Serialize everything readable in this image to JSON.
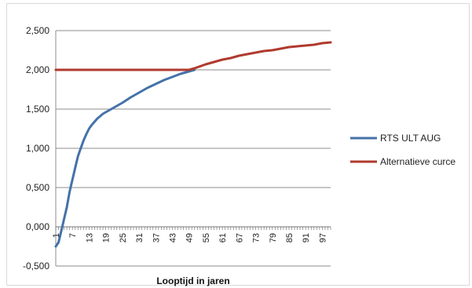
{
  "chart_data": {
    "type": "line",
    "title": "",
    "xlabel": "Looptijd in jaren",
    "ylabel": "",
    "ylim": [
      -0.5,
      2.5
    ],
    "yticks": [
      -0.5,
      0,
      0.5,
      1,
      1.5,
      2,
      2.5
    ],
    "ytick_labels": [
      "-0,500",
      "0,000",
      "0,500",
      "1,000",
      "1,500",
      "2,000",
      "2,500"
    ],
    "xlim": [
      1,
      100
    ],
    "xtick_labels": [
      "1",
      "7",
      "13",
      "19",
      "25",
      "31",
      "37",
      "43",
      "49",
      "55",
      "61",
      "67",
      "73",
      "79",
      "85",
      "91",
      "97"
    ],
    "grid": true,
    "legend_position": "right",
    "series": [
      {
        "name": "RTS ULT AUG",
        "color": "#4472a8",
        "x": [
          1,
          2,
          3,
          4,
          5,
          6,
          7,
          8,
          9,
          10,
          11,
          12,
          13,
          14,
          15,
          16,
          17,
          18,
          19,
          20,
          22,
          25,
          28,
          31,
          34,
          37,
          40,
          43,
          46,
          49,
          51
        ],
        "values": [
          -0.25,
          -0.2,
          -0.05,
          0.1,
          0.25,
          0.45,
          0.6,
          0.75,
          0.9,
          1.0,
          1.1,
          1.18,
          1.25,
          1.3,
          1.34,
          1.38,
          1.41,
          1.44,
          1.46,
          1.48,
          1.52,
          1.58,
          1.65,
          1.71,
          1.77,
          1.82,
          1.87,
          1.91,
          1.95,
          1.98,
          2.0
        ]
      },
      {
        "name": "Alternatieve curce",
        "color": "#b03a2e",
        "x": [
          1,
          10,
          20,
          30,
          40,
          49,
          51,
          55,
          58,
          61,
          64,
          67,
          70,
          73,
          76,
          79,
          82,
          85,
          88,
          91,
          94,
          97,
          100
        ],
        "values": [
          2.0,
          2.0,
          2.0,
          2.0,
          2.0,
          2.0,
          2.02,
          2.07,
          2.1,
          2.13,
          2.15,
          2.18,
          2.2,
          2.22,
          2.24,
          2.25,
          2.27,
          2.29,
          2.3,
          2.31,
          2.32,
          2.34,
          2.35
        ]
      }
    ]
  }
}
